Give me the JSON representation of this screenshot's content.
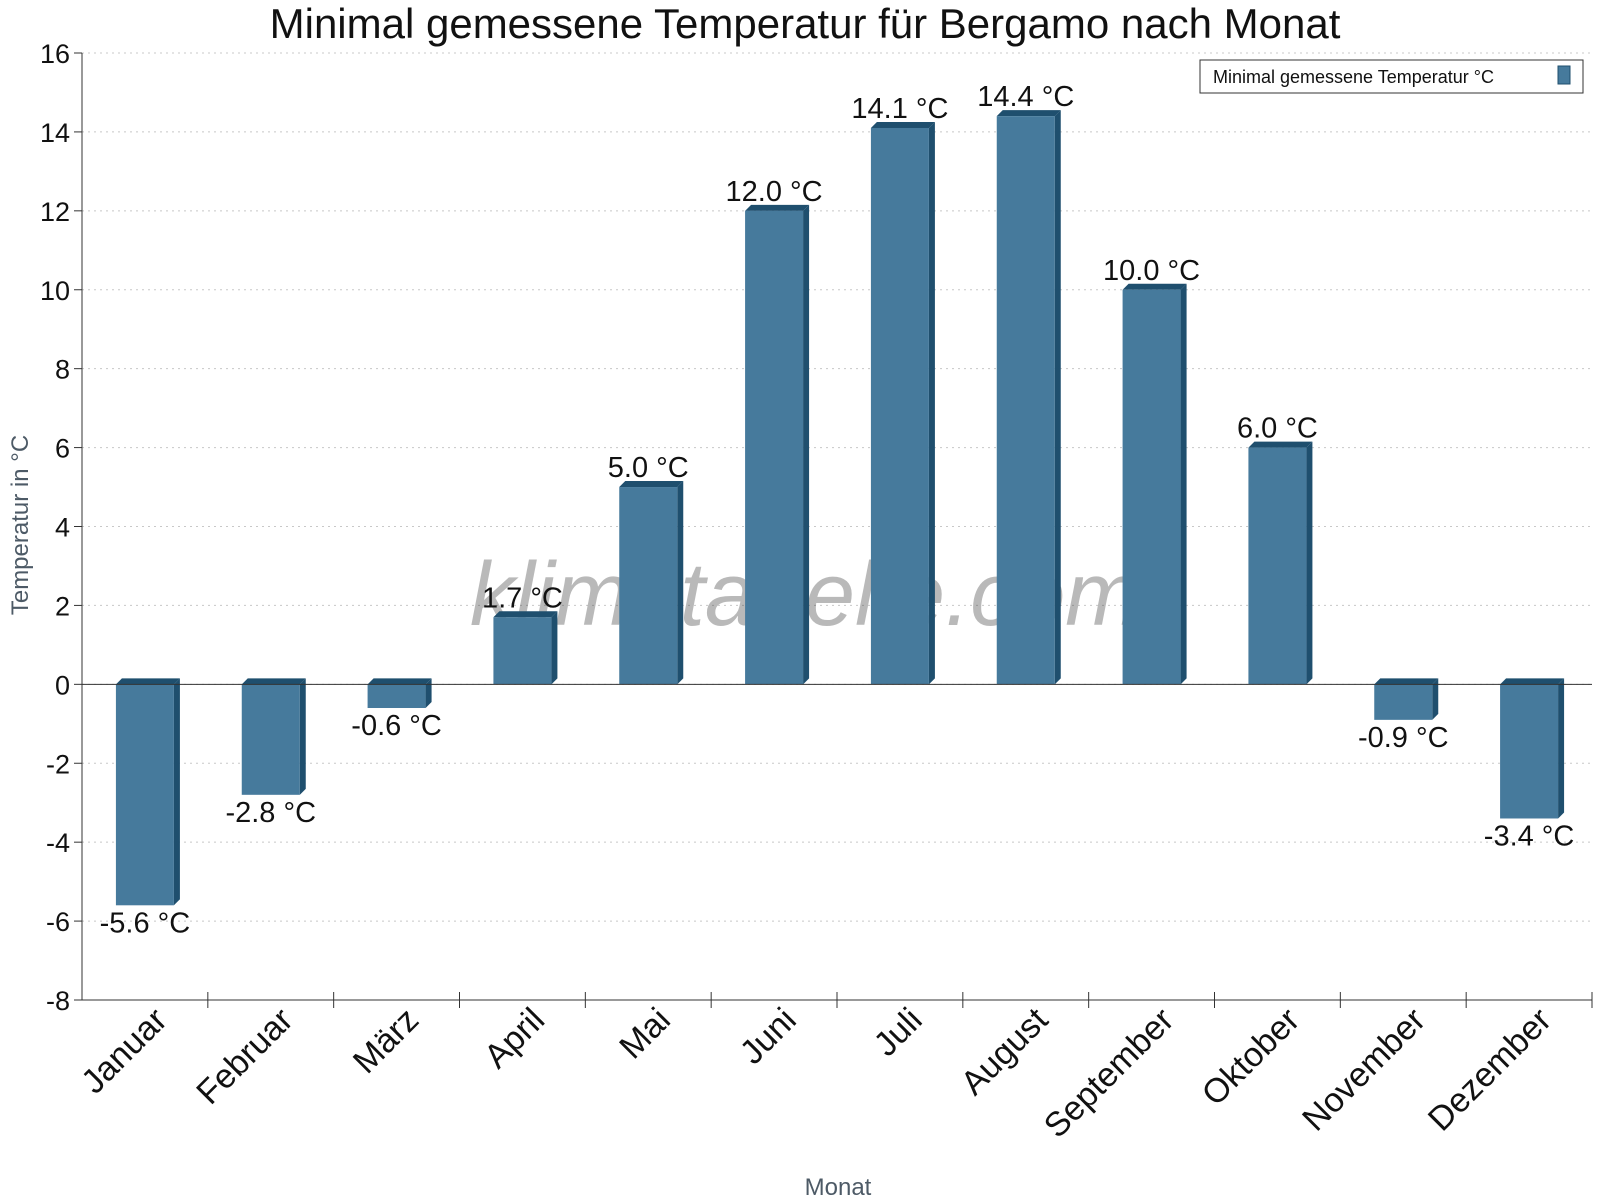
{
  "chart_data": {
    "type": "bar",
    "title": "Minimal gemessene Temperatur für Bergamo nach Monat",
    "xlabel": "Monat",
    "ylabel": "Temperatur in °C",
    "ylim": [
      -8,
      16
    ],
    "yticks": [
      -8,
      -6,
      -4,
      -2,
      0,
      2,
      4,
      6,
      8,
      10,
      12,
      14,
      16
    ],
    "grid": true,
    "legend_position": "top-right",
    "watermark": "klimatabelle.com",
    "unit": "°C",
    "categories": [
      "Januar",
      "Februar",
      "März",
      "April",
      "Mai",
      "Juni",
      "Juli",
      "August",
      "September",
      "Oktober",
      "November",
      "Dezember"
    ],
    "series": [
      {
        "name": "Minimal gemessene Temperatur °C",
        "color": "#467a9c",
        "side_color": "#1f4f6e",
        "values": [
          -5.6,
          -2.8,
          -0.6,
          1.7,
          5.0,
          12.0,
          14.1,
          14.4,
          10.0,
          6.0,
          -0.9,
          -3.4
        ],
        "labels": [
          "-5.6 °C",
          "-2.8 °C",
          "-0.6 °C",
          "1.7 °C",
          "5.0 °C",
          "12.0 °C",
          "14.1 °C",
          "14.4 °C",
          "10.0 °C",
          "6.0 °C",
          "-0.9 °C",
          "-3.4 °C"
        ]
      }
    ]
  }
}
